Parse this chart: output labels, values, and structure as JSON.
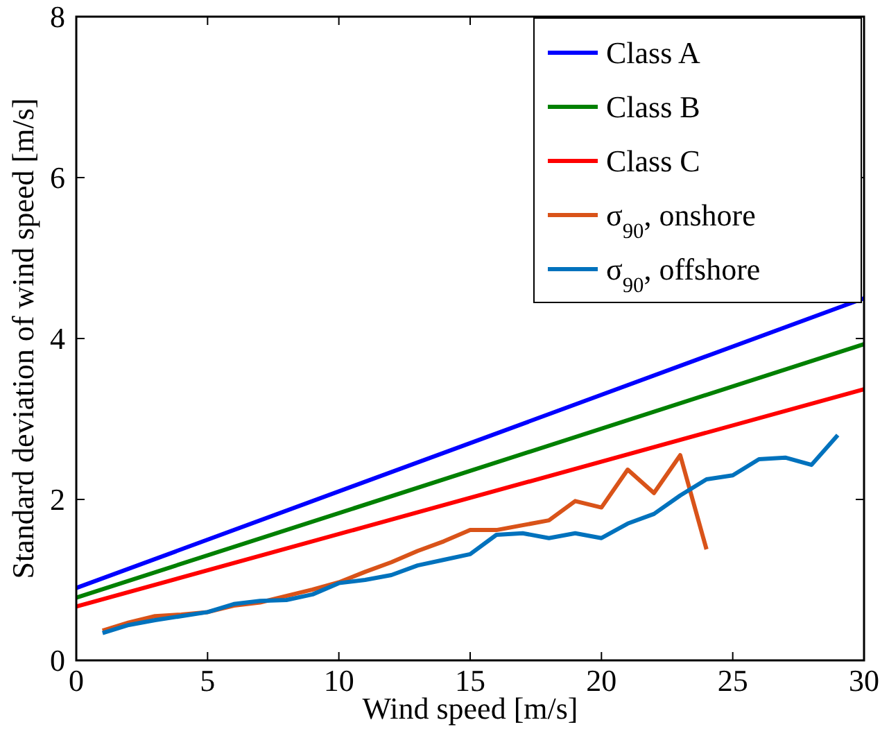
{
  "chart_data": {
    "type": "line",
    "xlabel": "Wind speed [m/s]",
    "ylabel": "Standard deviation of wind speed [m/s]",
    "xlim": [
      0,
      30
    ],
    "ylim": [
      0,
      8
    ],
    "xticks": [
      0,
      5,
      10,
      15,
      20,
      25,
      30
    ],
    "yticks": [
      0,
      2,
      4,
      6,
      8
    ],
    "legend": "top right",
    "grid": false,
    "series": [
      {
        "name": "Class A",
        "color": "#0000ff",
        "x": [
          0,
          30
        ],
        "values": [
          0.9,
          4.5
        ]
      },
      {
        "name": "Class B",
        "color": "#008000",
        "x": [
          0,
          30
        ],
        "values": [
          0.78,
          3.93
        ]
      },
      {
        "name": "Class C",
        "color": "#ff0000",
        "x": [
          0,
          30
        ],
        "values": [
          0.67,
          3.37
        ]
      },
      {
        "name": "σ$_{90}$, onshore",
        "color": "#d95319",
        "x": [
          1,
          2,
          3,
          4,
          5,
          6,
          7,
          8,
          9,
          10,
          11,
          12,
          13,
          14,
          15,
          16,
          17,
          18,
          19,
          20,
          21,
          22,
          23,
          24
        ],
        "values": [
          0.37,
          0.47,
          0.55,
          0.57,
          0.6,
          0.68,
          0.72,
          0.8,
          0.88,
          0.97,
          1.1,
          1.22,
          1.36,
          1.48,
          1.62,
          1.62,
          1.68,
          1.74,
          1.98,
          1.9,
          2.37,
          2.08,
          2.55,
          1.38
        ]
      },
      {
        "name": "σ$_{90}$, offshore",
        "color": "#0072bd",
        "x": [
          1,
          2,
          3,
          4,
          5,
          6,
          7,
          8,
          9,
          10,
          11,
          12,
          13,
          14,
          15,
          16,
          17,
          18,
          19,
          20,
          21,
          22,
          23,
          24,
          25,
          26,
          27,
          28,
          29
        ],
        "values": [
          0.34,
          0.44,
          0.5,
          0.55,
          0.6,
          0.7,
          0.74,
          0.75,
          0.82,
          0.96,
          1.0,
          1.06,
          1.18,
          1.25,
          1.32,
          1.56,
          1.58,
          1.52,
          1.58,
          1.52,
          1.7,
          1.82,
          2.05,
          2.25,
          2.3,
          2.5,
          2.52,
          2.43,
          2.8
        ]
      }
    ]
  }
}
